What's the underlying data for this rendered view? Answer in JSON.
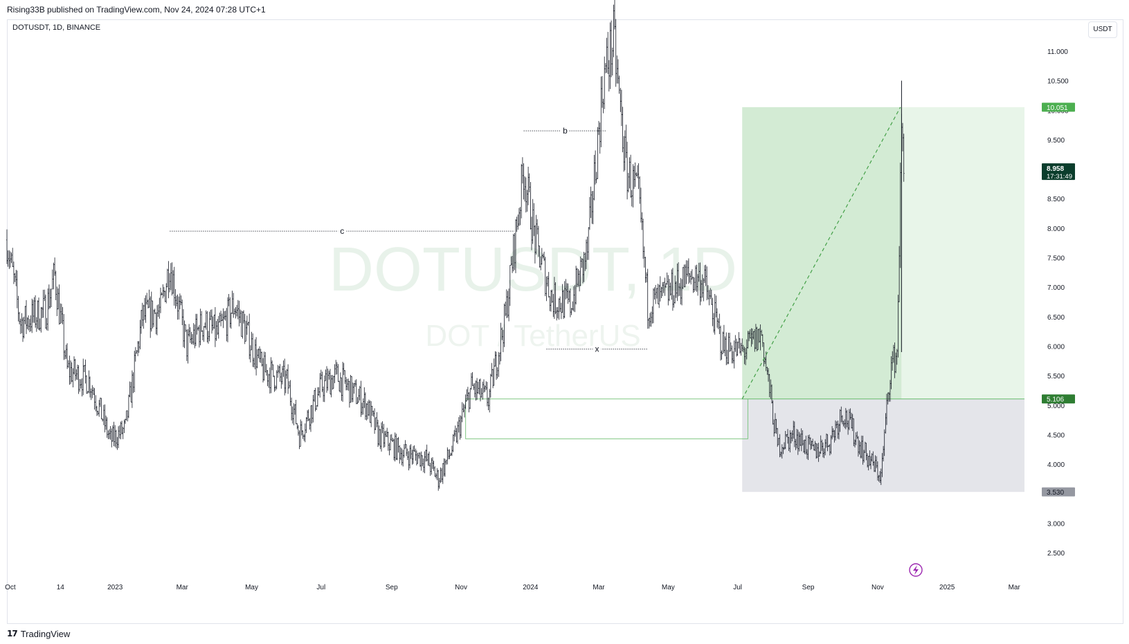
{
  "header": {
    "published_text": "Rising33B published on TradingView.com, Nov 24, 2024 07:28 UTC+1"
  },
  "symbol": {
    "label": "DOTUSDT, 1D, BINANCE",
    "watermark_main": "DOTUSDT, 1D",
    "watermark_sub": "DOT / TetherUS",
    "currency": "USDT"
  },
  "footer": {
    "brand": "TradingView"
  },
  "colors": {
    "candle": "#131722",
    "profit_zone": "#c8e6c9",
    "profit_zone_light": "#e8f5e9",
    "loss_zone": "#e4e5ea",
    "target_label": "#4caf50",
    "entry_label": "#2e7d32",
    "stop_label": "#9598a1",
    "last_price_label": "#0b3d2c",
    "watermark": "#e8f2ea",
    "lightning": "#9c27b0"
  },
  "chart_data": {
    "type": "ohlc",
    "symbol": "DOTUSDT",
    "timeframe": "1D",
    "exchange": "BINANCE",
    "currency": "USDT",
    "y_ticks": [
      2.5,
      3.0,
      3.5,
      4.0,
      4.5,
      5.0,
      5.5,
      6.0,
      6.5,
      7.0,
      7.5,
      8.0,
      8.5,
      9.0,
      9.5,
      10.0,
      10.5,
      11.0
    ],
    "y_tick_labels": [
      "2.500",
      "3.000",
      "3.500",
      "4.000",
      "4.500",
      "5.000",
      "5.500",
      "6.000",
      "6.500",
      "7.000",
      "7.500",
      "8.000",
      "8.500",
      "9.000",
      "9.500",
      "10.000",
      "10.500",
      "11.000"
    ],
    "x_ticks": [
      {
        "label": "Oct",
        "date": "2022-10-01"
      },
      {
        "label": "14",
        "date": "2022-11-14"
      },
      {
        "label": "2023",
        "date": "2023-01-01"
      },
      {
        "label": "Mar",
        "date": "2023-03-01"
      },
      {
        "label": "May",
        "date": "2023-05-01"
      },
      {
        "label": "Jul",
        "date": "2023-07-01"
      },
      {
        "label": "Sep",
        "date": "2023-09-01"
      },
      {
        "label": "Nov",
        "date": "2023-11-01"
      },
      {
        "label": "2024",
        "date": "2024-01-01"
      },
      {
        "label": "Mar",
        "date": "2024-03-01"
      },
      {
        "label": "May",
        "date": "2024-05-01"
      },
      {
        "label": "Jul",
        "date": "2024-07-01"
      },
      {
        "label": "Sep",
        "date": "2024-09-01"
      },
      {
        "label": "Nov",
        "date": "2024-11-01"
      },
      {
        "label": "2025",
        "date": "2025-01-01"
      },
      {
        "label": "Mar",
        "date": "2025-03-01"
      }
    ],
    "price_path": [
      {
        "date": "2022-09-28",
        "price": 7.8
      },
      {
        "date": "2022-10-10",
        "price": 6.4
      },
      {
        "date": "2022-11-01",
        "price": 6.6
      },
      {
        "date": "2022-11-09",
        "price": 7.2
      },
      {
        "date": "2022-11-20",
        "price": 5.6
      },
      {
        "date": "2022-12-10",
        "price": 5.4
      },
      {
        "date": "2022-12-28",
        "price": 4.4
      },
      {
        "date": "2023-01-10",
        "price": 4.6
      },
      {
        "date": "2023-01-25",
        "price": 6.5
      },
      {
        "date": "2023-02-10",
        "price": 6.6
      },
      {
        "date": "2023-02-18",
        "price": 7.4
      },
      {
        "date": "2023-03-05",
        "price": 6.0
      },
      {
        "date": "2023-03-20",
        "price": 6.4
      },
      {
        "date": "2023-04-01",
        "price": 6.2
      },
      {
        "date": "2023-04-16",
        "price": 6.7
      },
      {
        "date": "2023-05-10",
        "price": 5.6
      },
      {
        "date": "2023-06-01",
        "price": 5.4
      },
      {
        "date": "2023-06-12",
        "price": 4.5
      },
      {
        "date": "2023-07-01",
        "price": 5.3
      },
      {
        "date": "2023-07-14",
        "price": 5.5
      },
      {
        "date": "2023-08-10",
        "price": 5.0
      },
      {
        "date": "2023-08-20",
        "price": 4.5
      },
      {
        "date": "2023-09-10",
        "price": 4.2
      },
      {
        "date": "2023-10-01",
        "price": 4.1
      },
      {
        "date": "2023-10-12",
        "price": 3.75
      },
      {
        "date": "2023-10-25",
        "price": 4.3
      },
      {
        "date": "2023-11-10",
        "price": 5.3
      },
      {
        "date": "2023-11-25",
        "price": 5.1
      },
      {
        "date": "2023-12-10",
        "price": 6.5
      },
      {
        "date": "2023-12-26",
        "price": 9.0
      },
      {
        "date": "2024-01-05",
        "price": 7.8
      },
      {
        "date": "2024-01-20",
        "price": 6.8
      },
      {
        "date": "2024-02-05",
        "price": 6.7
      },
      {
        "date": "2024-02-20",
        "price": 7.6
      },
      {
        "date": "2024-03-05",
        "price": 10.5
      },
      {
        "date": "2024-03-14",
        "price": 11.2
      },
      {
        "date": "2024-03-25",
        "price": 9.0
      },
      {
        "date": "2024-04-05",
        "price": 8.5
      },
      {
        "date": "2024-04-13",
        "price": 6.7
      },
      {
        "date": "2024-04-25",
        "price": 6.8
      },
      {
        "date": "2024-05-20",
        "price": 7.2
      },
      {
        "date": "2024-06-01",
        "price": 7.1
      },
      {
        "date": "2024-06-18",
        "price": 6.0
      },
      {
        "date": "2024-07-05",
        "price": 5.9
      },
      {
        "date": "2024-07-22",
        "price": 6.2
      },
      {
        "date": "2024-08-05",
        "price": 4.3
      },
      {
        "date": "2024-08-20",
        "price": 4.5
      },
      {
        "date": "2024-09-05",
        "price": 4.2
      },
      {
        "date": "2024-09-20",
        "price": 4.4
      },
      {
        "date": "2024-10-01",
        "price": 4.9
      },
      {
        "date": "2024-10-20",
        "price": 4.2
      },
      {
        "date": "2024-11-04",
        "price": 3.8
      },
      {
        "date": "2024-11-12",
        "price": 5.6
      },
      {
        "date": "2024-11-18",
        "price": 5.9
      },
      {
        "date": "2024-11-22",
        "price": 9.6
      },
      {
        "date": "2024-11-24",
        "price": 8.958
      }
    ],
    "swing_levels": [
      {
        "label": "c",
        "price": 7.95,
        "from": "2023-02-18",
        "to": "2023-12-18"
      },
      {
        "label": "b",
        "price": 9.65,
        "from": "2023-12-26",
        "to": "2024-03-08"
      },
      {
        "label": "x",
        "price": 5.95,
        "from": "2024-01-15",
        "to": "2024-04-13"
      }
    ],
    "long_position": {
      "start": "2024-07-05",
      "end": "2025-03-10",
      "entry": 5.106,
      "target": 10.051,
      "stop": 3.53,
      "entry_label": "5.106",
      "target_label": "10.051",
      "stop_label": "3.530"
    },
    "green_box": {
      "from": "2023-11-05",
      "to": "2024-07-10",
      "top": 5.106,
      "bottom": 4.43
    },
    "trend_line": {
      "from_date": "2024-07-05",
      "from_price": 5.106,
      "to_date": "2024-11-21",
      "to_price": 10.051
    },
    "last_price": {
      "value": 8.958,
      "label": "8.958",
      "countdown": "17:31:49"
    }
  }
}
